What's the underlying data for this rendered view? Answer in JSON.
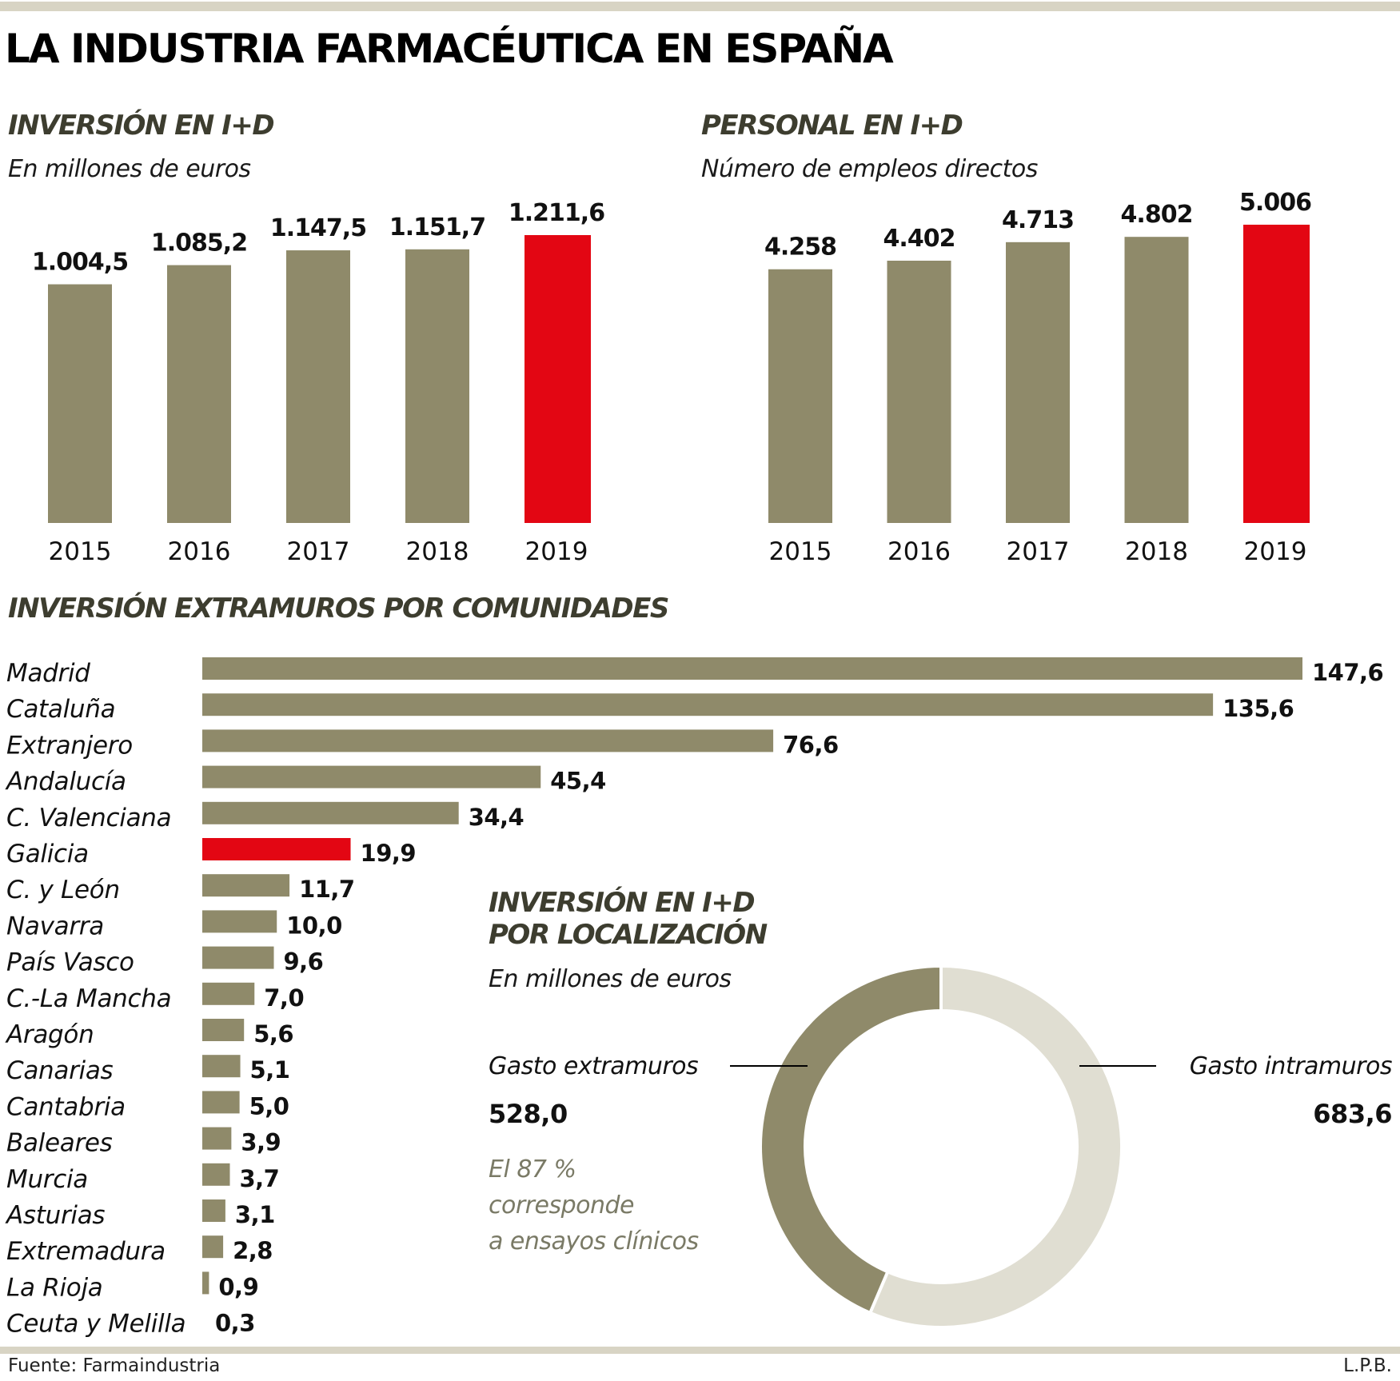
{
  "title": "LA INDUSTRIA FARMACÉUTICA EN ESPAÑA",
  "colors": {
    "bar": "#8f8a6a",
    "highlight": "#e30613",
    "donut_light": "#e0ded2",
    "rule": "#d8d4c4",
    "heading": "#3d3d2f",
    "note": "#7a7a66"
  },
  "footer": {
    "source": "Fuente: Farmaindustria",
    "credit": "L.P.B."
  },
  "chart_data": [
    {
      "id": "inversion",
      "type": "bar",
      "title": "INVERSIÓN EN I+D",
      "subtitle": "En millones de euros",
      "categories": [
        "2015",
        "2016",
        "2017",
        "2018",
        "2019"
      ],
      "values": [
        1004.5,
        1085.2,
        1147.5,
        1151.7,
        1211.6
      ],
      "labels": [
        "1.004,5",
        "1.085,2",
        "1.147,5",
        "1.151,7",
        "1.211,6"
      ],
      "highlight": "2019",
      "xlabel": "",
      "ylabel": "",
      "ylim": [
        0,
        1211.6
      ],
      "grid": false
    },
    {
      "id": "personal",
      "type": "bar",
      "title": "PERSONAL EN I+D",
      "subtitle": "Número de empleos directos",
      "categories": [
        "2015",
        "2016",
        "2017",
        "2018",
        "2019"
      ],
      "values": [
        4258,
        4402,
        4713,
        4802,
        5006
      ],
      "labels": [
        "4.258",
        "4.402",
        "4.713",
        "4.802",
        "5.006"
      ],
      "highlight": "2019",
      "xlabel": "",
      "ylabel": "",
      "ylim": [
        0,
        5006
      ],
      "grid": false
    },
    {
      "id": "comunidades",
      "type": "bar",
      "orientation": "horizontal",
      "title": "INVERSIÓN EXTRAMUROS POR COMUNIDADES",
      "categories": [
        "Madrid",
        "Cataluña",
        "Extranjero",
        "Andalucía",
        "C. Valenciana",
        "Galicia",
        "C. y León",
        "Navarra",
        "País Vasco",
        "C.-La Mancha",
        "Aragón",
        "Canarias",
        "Cantabria",
        "Baleares",
        "Murcia",
        "Asturias",
        "Extremadura",
        "La Rioja",
        "Ceuta y Melilla"
      ],
      "values": [
        147.6,
        135.6,
        76.6,
        45.4,
        34.4,
        19.9,
        11.7,
        10.0,
        9.6,
        7.0,
        5.6,
        5.1,
        5.0,
        3.9,
        3.7,
        3.1,
        2.8,
        0.9,
        0.3
      ],
      "labels": [
        "147,6",
        "135,6",
        "76,6",
        "45,4",
        "34,4",
        "19,9",
        "11,7",
        "10,0",
        "9,6",
        "7,0",
        "5,6",
        "5,1",
        "5,0",
        "3,9",
        "3,7",
        "3,1",
        "2,8",
        "0,9",
        "0,3"
      ],
      "highlight": "Galicia",
      "xlim": [
        0,
        147.6
      ],
      "grid": false
    },
    {
      "id": "localizacion",
      "type": "pie",
      "donut": true,
      "title_lines": [
        "INVERSIÓN EN I+D",
        "POR LOCALIZACIÓN"
      ],
      "subtitle": "En millones de euros",
      "slices": [
        {
          "name": "Gasto extramuros",
          "value": 528.0,
          "label": "528,0"
        },
        {
          "name": "Gasto intramuros",
          "value": 683.6,
          "label": "683,6"
        }
      ],
      "note": [
        "El 87 %",
        "corresponde",
        "a ensayos clínicos"
      ]
    }
  ]
}
